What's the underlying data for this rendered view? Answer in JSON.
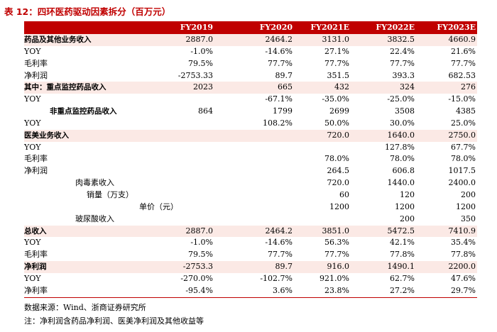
{
  "title": "表 12：四环医药驱动因素拆分（百万元）",
  "headers": [
    "FY2019",
    "FY2020",
    "FY2021E",
    "FY2022E",
    "FY2023E"
  ],
  "rows": [
    {
      "label": "药品及其他业务收入",
      "indent": 0,
      "bold": true,
      "hl": true,
      "values": [
        "2887.0",
        "2464.2",
        "3131.0",
        "3832.5",
        "4660.9"
      ]
    },
    {
      "label": "YOY",
      "indent": 0,
      "bold": false,
      "hl": false,
      "values": [
        "-1.0%",
        "-14.6%",
        "27.1%",
        "22.4%",
        "21.6%"
      ]
    },
    {
      "label": "毛利率",
      "indent": 0,
      "bold": false,
      "hl": false,
      "values": [
        "79.5%",
        "77.7%",
        "77.7%",
        "77.7%",
        "77.7%"
      ]
    },
    {
      "label": "净利润",
      "indent": 0,
      "bold": false,
      "hl": false,
      "values": [
        "-2753.33",
        "89.7",
        "351.5",
        "393.3",
        "682.53"
      ]
    },
    {
      "label": "其中：重点监控药品收入",
      "indent": 0,
      "bold": true,
      "hl": true,
      "values": [
        "2023",
        "665",
        "432",
        "324",
        "276"
      ]
    },
    {
      "label": "YOY",
      "indent": 0,
      "bold": false,
      "hl": false,
      "values": [
        "",
        "-67.1%",
        "-35.0%",
        "-25.0%",
        "-15.0%"
      ]
    },
    {
      "label": "非重点监控药品收入",
      "indent": 36,
      "bold": true,
      "hl": false,
      "values": [
        "864",
        "1799",
        "2699",
        "3508",
        "4385"
      ]
    },
    {
      "label": "YOY",
      "indent": 0,
      "bold": false,
      "hl": false,
      "values": [
        "",
        "108.2%",
        "50.0%",
        "30.0%",
        "25.0%"
      ]
    },
    {
      "label": "医美业务收入",
      "indent": 0,
      "bold": true,
      "hl": true,
      "values": [
        "",
        "",
        "720.0",
        "1640.0",
        "2750.0"
      ]
    },
    {
      "label": "YOY",
      "indent": 0,
      "bold": false,
      "hl": false,
      "values": [
        "",
        "",
        "",
        "127.8%",
        "67.7%"
      ]
    },
    {
      "label": "毛利率",
      "indent": 0,
      "bold": false,
      "hl": false,
      "values": [
        "",
        "",
        "78.0%",
        "78.0%",
        "78.0%"
      ]
    },
    {
      "label": "净利润",
      "indent": 0,
      "bold": false,
      "hl": false,
      "values": [
        "",
        "",
        "264.5",
        "606.8",
        "1017.5"
      ]
    },
    {
      "label": "肉毒素收入",
      "indent": 72,
      "bold": false,
      "hl": false,
      "values": [
        "",
        "",
        "720.0",
        "1440.0",
        "2400.0"
      ]
    },
    {
      "label": "销量（万支）",
      "indent": 88,
      "bold": false,
      "hl": false,
      "values": [
        "",
        "",
        "60",
        "120",
        "200"
      ]
    },
    {
      "label": "单价（元）",
      "indent": 162,
      "bold": false,
      "hl": false,
      "values": [
        "",
        "",
        "1200",
        "1200",
        "1200"
      ]
    },
    {
      "label": "玻尿酸收入",
      "indent": 72,
      "bold": false,
      "hl": false,
      "values": [
        "",
        "",
        "",
        "200",
        "350"
      ]
    },
    {
      "label": "总收入",
      "indent": 0,
      "bold": true,
      "hl": true,
      "values": [
        "2887.0",
        "2464.2",
        "3851.0",
        "5472.5",
        "7410.9"
      ]
    },
    {
      "label": "YOY",
      "indent": 0,
      "bold": false,
      "hl": false,
      "values": [
        "-1.0%",
        "-14.6%",
        "56.3%",
        "42.1%",
        "35.4%"
      ]
    },
    {
      "label": "毛利率",
      "indent": 0,
      "bold": false,
      "hl": false,
      "values": [
        "79.5%",
        "77.7%",
        "77.7%",
        "77.8%",
        "77.8%"
      ]
    },
    {
      "label": "净利润",
      "indent": 0,
      "bold": true,
      "hl": true,
      "values": [
        "-2753.3",
        "89.7",
        "916.0",
        "1490.1",
        "2200.0"
      ]
    },
    {
      "label": "YOY",
      "indent": 0,
      "bold": false,
      "hl": false,
      "values": [
        "-270.0%",
        "-102.7%",
        "921.0%",
        "62.7%",
        "47.6%"
      ]
    },
    {
      "label": "净利率",
      "indent": 0,
      "bold": false,
      "hl": false,
      "values": [
        "-95.4%",
        "3.6%",
        "23.8%",
        "27.2%",
        "29.7%"
      ]
    }
  ],
  "notes": [
    "数据来源：Wind、浙商证券研究所",
    "注：净利润含药品净利润、医美净利润及其他收益等"
  ],
  "colors": {
    "accent": "#c00000",
    "highlight": "#fbe9e5"
  }
}
